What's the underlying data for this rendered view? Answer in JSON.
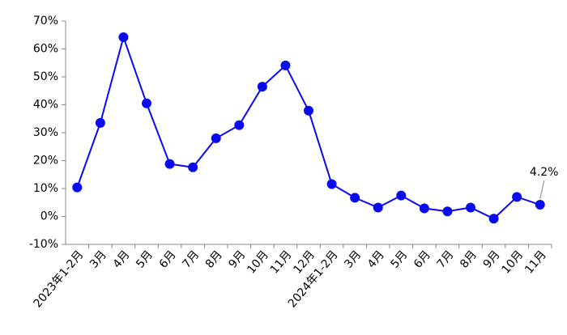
{
  "chart_data": {
    "type": "line",
    "categories": [
      "2023年1-2月",
      "3月",
      "4月",
      "5月",
      "6月",
      "7月",
      "8月",
      "9月",
      "10月",
      "11月",
      "12月",
      "2024年1-2月",
      "3月",
      "4月",
      "5月",
      "6月",
      "7月",
      "8月",
      "9月",
      "10月",
      "11月"
    ],
    "series": [
      {
        "color": "#0a0aef",
        "values": [
          10.4,
          33.5,
          64.2,
          40.5,
          18.8,
          17.6,
          28.0,
          32.7,
          46.5,
          54.1,
          37.9,
          11.6,
          6.7,
          3.2,
          7.5,
          2.9,
          1.8,
          3.2,
          -0.8,
          7.0,
          4.2
        ],
        "value_labels": [
          null,
          null,
          null,
          null,
          null,
          null,
          null,
          null,
          null,
          null,
          null,
          null,
          null,
          null,
          null,
          null,
          null,
          null,
          null,
          null,
          "4.2%"
        ]
      }
    ],
    "ylim": [
      -10,
      70
    ],
    "yticks": [
      {
        "value": -10,
        "label": "-10%"
      },
      {
        "value": 0,
        "label": "0%"
      },
      {
        "value": 10,
        "label": "10%"
      },
      {
        "value": 20,
        "label": "20%"
      },
      {
        "value": 30,
        "label": "30%"
      },
      {
        "value": 40,
        "label": "40%"
      },
      {
        "value": 50,
        "label": "50%"
      },
      {
        "value": 60,
        "label": "60%"
      },
      {
        "value": 70,
        "label": "70%"
      }
    ]
  }
}
